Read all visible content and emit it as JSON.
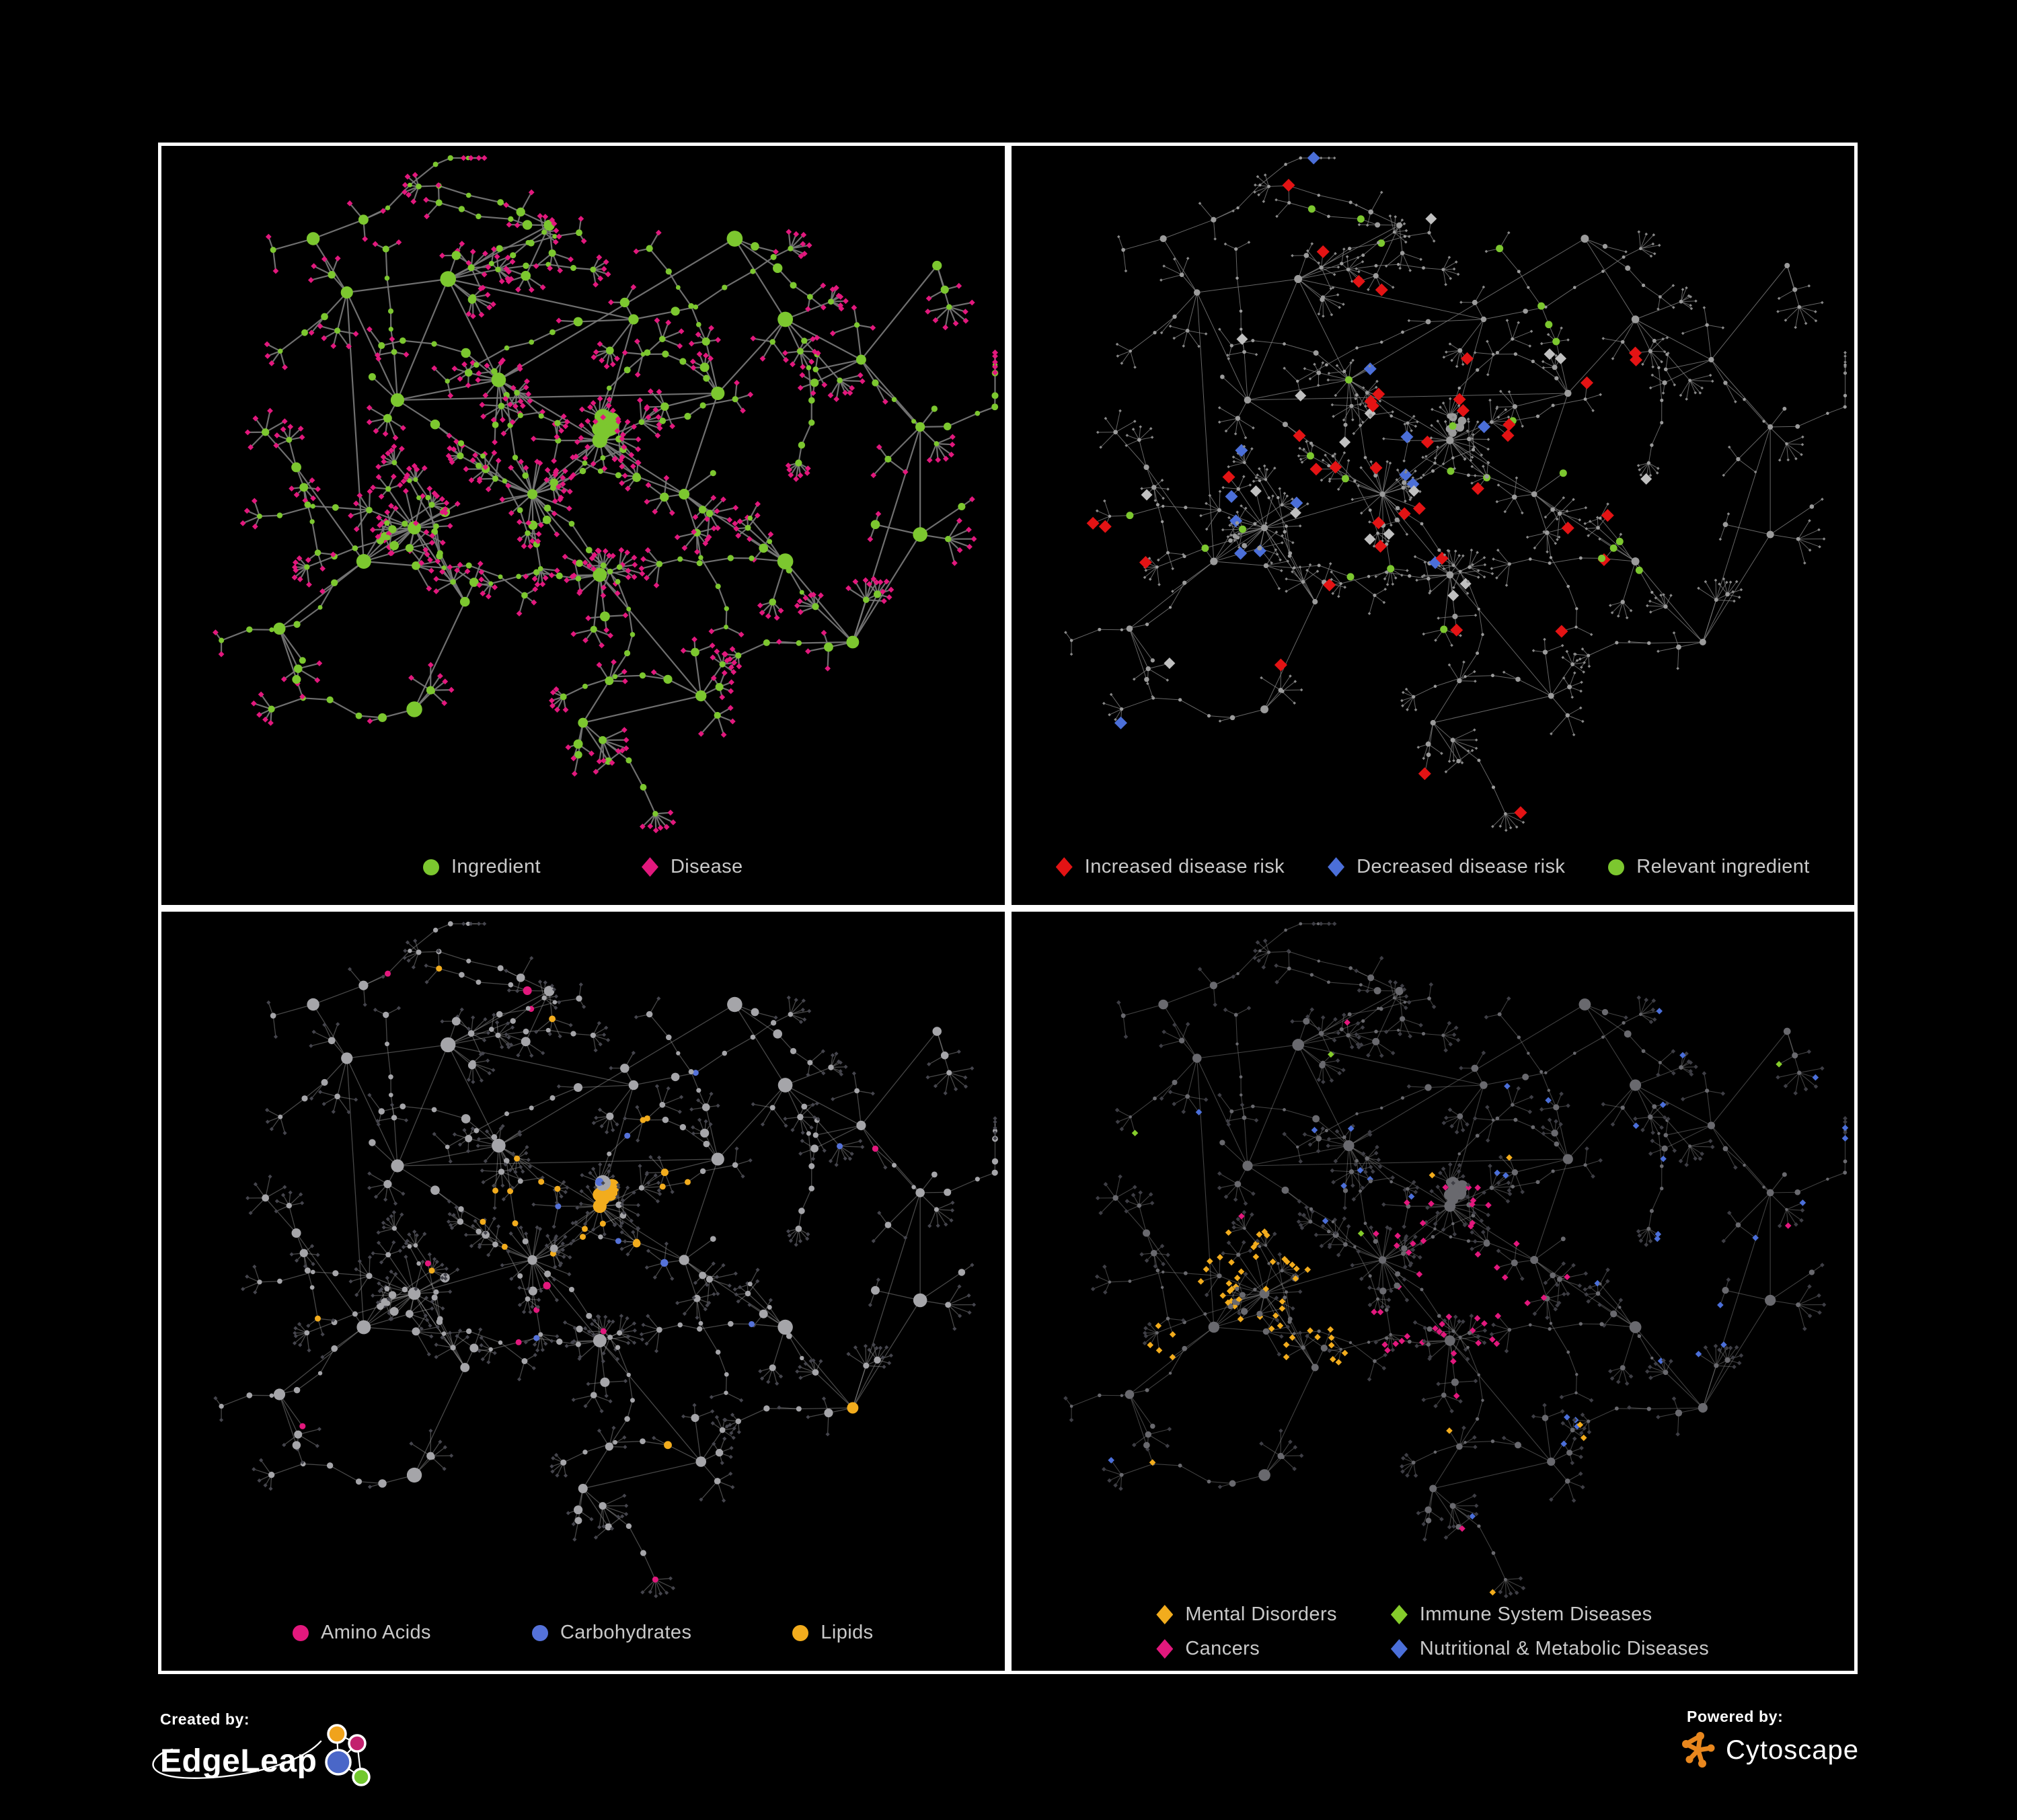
{
  "background": "#000000",
  "legend_text_color": "#c9c9c9",
  "panels": [
    {
      "id": "ingredient-disease",
      "legend": [
        {
          "label": "Ingredient",
          "shape": "circle",
          "color": "#7cc72f"
        },
        {
          "label": "Disease",
          "shape": "diamond",
          "color": "#e2187d"
        }
      ],
      "style": {
        "edge": "#787878",
        "edge_width": 2.2,
        "edge_opacity": 0.92,
        "circle": "#7cc72f",
        "leaf": "#e2187d"
      }
    },
    {
      "id": "disease-risk",
      "legend": [
        {
          "label": "Increased disease risk",
          "shape": "diamond",
          "color": "#e31314"
        },
        {
          "label": "Decreased disease risk",
          "shape": "diamond",
          "color": "#4b6fd9"
        },
        {
          "label": "Relevant ingredient",
          "shape": "circle",
          "color": "#7cc72f"
        }
      ],
      "style": {
        "edge": "#808080",
        "edge_width": 1,
        "edge_opacity": 0.8,
        "circle": "#9b9b9b",
        "leaf": "#8a8a8a",
        "increased": "#e31314",
        "decreased": "#4b6fd9",
        "neutral": "#c0c0c0",
        "relevant": "#7cc72f"
      }
    },
    {
      "id": "nutrient-classes",
      "legend": [
        {
          "label": "Amino Acids",
          "shape": "circle",
          "color": "#e2187d"
        },
        {
          "label": "Carbohydrates",
          "shape": "circle",
          "color": "#5572d9"
        },
        {
          "label": "Lipids",
          "shape": "circle",
          "color": "#f2ac1d"
        }
      ],
      "style": {
        "edge": "#a9a9a9",
        "edge_width": 1.3,
        "edge_opacity": 0.42,
        "circle": "#a5a5a9",
        "leaf": "#45454d",
        "amino": "#e2187d",
        "carb": "#5572d9",
        "lipid": "#f2ac1d"
      }
    },
    {
      "id": "disease-classes",
      "legend": [
        {
          "label": "Mental Disorders",
          "shape": "diamond",
          "color": "#f2ac1d"
        },
        {
          "label": "Immune System Diseases",
          "shape": "diamond",
          "color": "#85cc2b"
        },
        {
          "label": "Cancers",
          "shape": "diamond",
          "color": "#e2187d"
        },
        {
          "label": "Nutritional & Metabolic Diseases",
          "shape": "diamond",
          "color": "#4b6fd9"
        }
      ],
      "style": {
        "edge": "#8f8f8f",
        "edge_width": 1.1,
        "edge_opacity": 0.45,
        "circle": "#69696e",
        "leaf": "#3e3e45",
        "mental": "#f2ac1d",
        "immune": "#85cc2b",
        "cancer": "#e2187d",
        "metabolic": "#4b6fd9"
      }
    }
  ],
  "footer": {
    "created_by_label": "Created by:",
    "created_by_name": "EdgeLeap",
    "powered_by_label": "Powered by:",
    "powered_by_name": "Cytoscape",
    "cytoscape_color": "#e8871e",
    "edgeleap_node_colors": [
      "#f0a31c",
      "#c2206e",
      "#4a67c8",
      "#72c82f"
    ]
  }
}
